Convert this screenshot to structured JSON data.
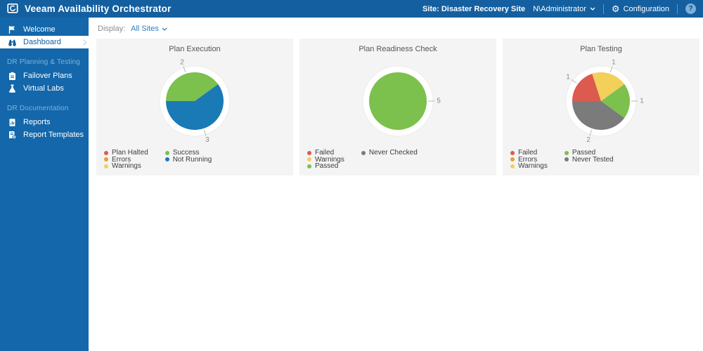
{
  "topbar": {
    "title": "Veeam Availability Orchestrator",
    "site_label": "Site: Disaster Recovery Site",
    "user": "N\\Administrator",
    "configuration_label": "Configuration",
    "help_label": "?"
  },
  "sidebar": {
    "items": [
      {
        "label": "Welcome",
        "icon": "flag-icon",
        "selected": false
      },
      {
        "label": "Dashboard",
        "icon": "binoculars-icon",
        "selected": true
      }
    ],
    "sections": [
      {
        "heading": "DR Planning & Testing",
        "items": [
          {
            "label": "Failover Plans",
            "icon": "failover-plans-icon"
          },
          {
            "label": "Virtual Labs",
            "icon": "flask-icon"
          }
        ]
      },
      {
        "heading": "DR Documentation",
        "items": [
          {
            "label": "Reports",
            "icon": "report-icon"
          },
          {
            "label": "Report Templates",
            "icon": "report-template-icon"
          }
        ]
      }
    ]
  },
  "toolbar": {
    "display_label": "Display:",
    "display_value": "All Sites"
  },
  "colors": {
    "topbar_bg": "#135fa0",
    "sidebar_bg": "#1367aa",
    "card_bg": "#f4f4f4",
    "accent_link": "#2f7fc1",
    "status_red": "#dd5a4e",
    "status_orange": "#e49f3e",
    "status_yellow": "#f3d05a",
    "status_green": "#7cc04e",
    "status_blue": "#1a7ab5",
    "status_gray": "#7b7b7b"
  },
  "chart_data": [
    {
      "type": "pie",
      "title": "Plan Execution",
      "start_angle": 270,
      "total": 5,
      "legend_position": "bottom-left",
      "slices": [
        {
          "label": "Plan Halted",
          "value": 0,
          "color": "#dd5a4e"
        },
        {
          "label": "Errors",
          "value": 0,
          "color": "#e49f3e"
        },
        {
          "label": "Warnings",
          "value": 0,
          "color": "#f3d05a"
        },
        {
          "label": "Success",
          "value": 2,
          "color": "#7cc04e"
        },
        {
          "label": "Not Running",
          "value": 3,
          "color": "#1a7ab5"
        }
      ]
    },
    {
      "type": "pie",
      "title": "Plan Readiness Check",
      "start_angle": 270,
      "total": 5,
      "legend_position": "bottom-left",
      "slices": [
        {
          "label": "Failed",
          "value": 0,
          "color": "#dd5a4e"
        },
        {
          "label": "Warnings",
          "value": 0,
          "color": "#f3d05a"
        },
        {
          "label": "Passed",
          "value": 5,
          "color": "#7cc04e"
        },
        {
          "label": "Never Checked",
          "value": 0,
          "color": "#7b7b7b"
        }
      ]
    },
    {
      "type": "pie",
      "title": "Plan Testing",
      "start_angle": 270,
      "total": 5,
      "legend_position": "bottom-left",
      "slices": [
        {
          "label": "Failed",
          "value": 1,
          "color": "#dd5a4e"
        },
        {
          "label": "Errors",
          "value": 0,
          "color": "#e49f3e"
        },
        {
          "label": "Warnings",
          "value": 1,
          "color": "#f3d05a"
        },
        {
          "label": "Passed",
          "value": 1,
          "color": "#7cc04e"
        },
        {
          "label": "Never Tested",
          "value": 2,
          "color": "#7b7b7b"
        }
      ]
    }
  ]
}
